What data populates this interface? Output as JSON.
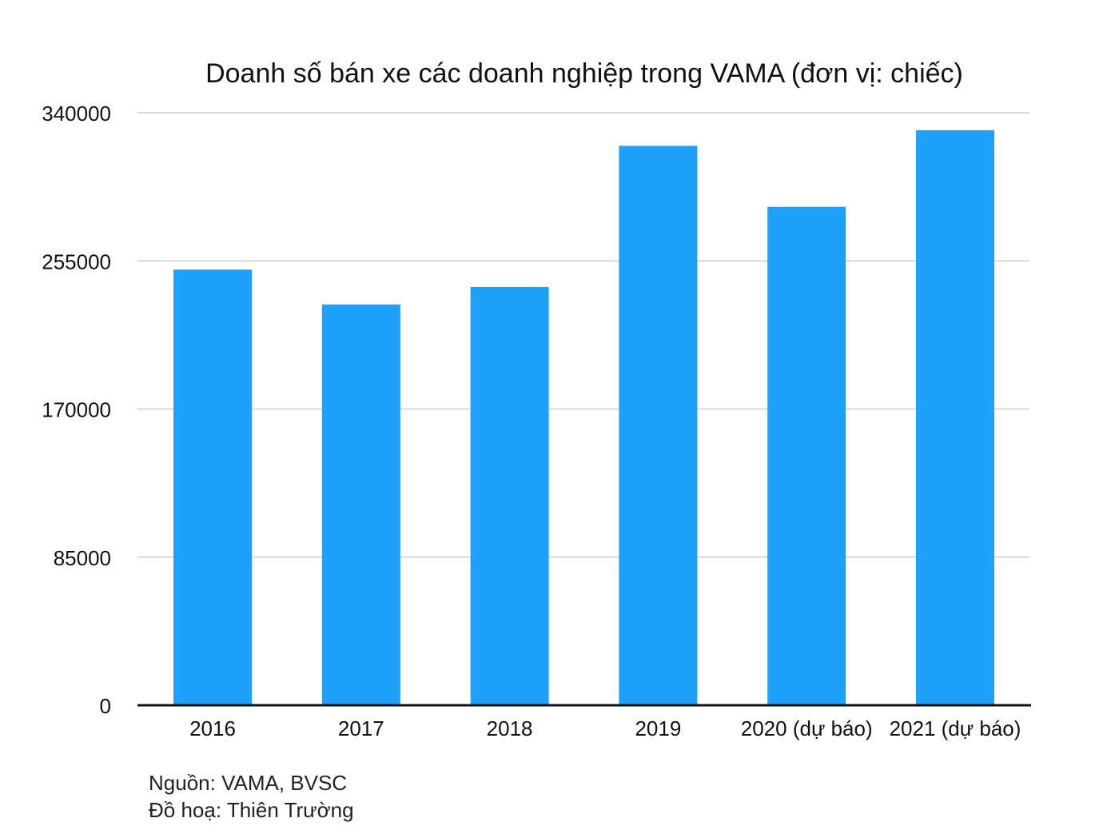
{
  "colors": {
    "bar": "#1da1fb",
    "grid": "#cfcfcf",
    "axis": "#111111",
    "text": "#111111"
  },
  "chart_data": {
    "type": "bar",
    "title": "Doanh số bán xe các doanh nghiệp trong VAMA (đơn vị: chiếc)",
    "categories": [
      "2016",
      "2017",
      "2018",
      "2019",
      "2020 (dự báo)",
      "2021 (dự báo)"
    ],
    "values": [
      250000,
      230000,
      240000,
      321000,
      286000,
      330000
    ],
    "xlabel": "",
    "ylabel": "",
    "ylim": [
      0,
      340000
    ],
    "yticks": [
      "0",
      "85000",
      "170000",
      "255000",
      "340000"
    ],
    "grid": true,
    "legend": "none"
  },
  "footer": {
    "source": "Nguồn: VAMA, BVSC",
    "credit": "Đồ hoạ: Thiên Trường"
  }
}
